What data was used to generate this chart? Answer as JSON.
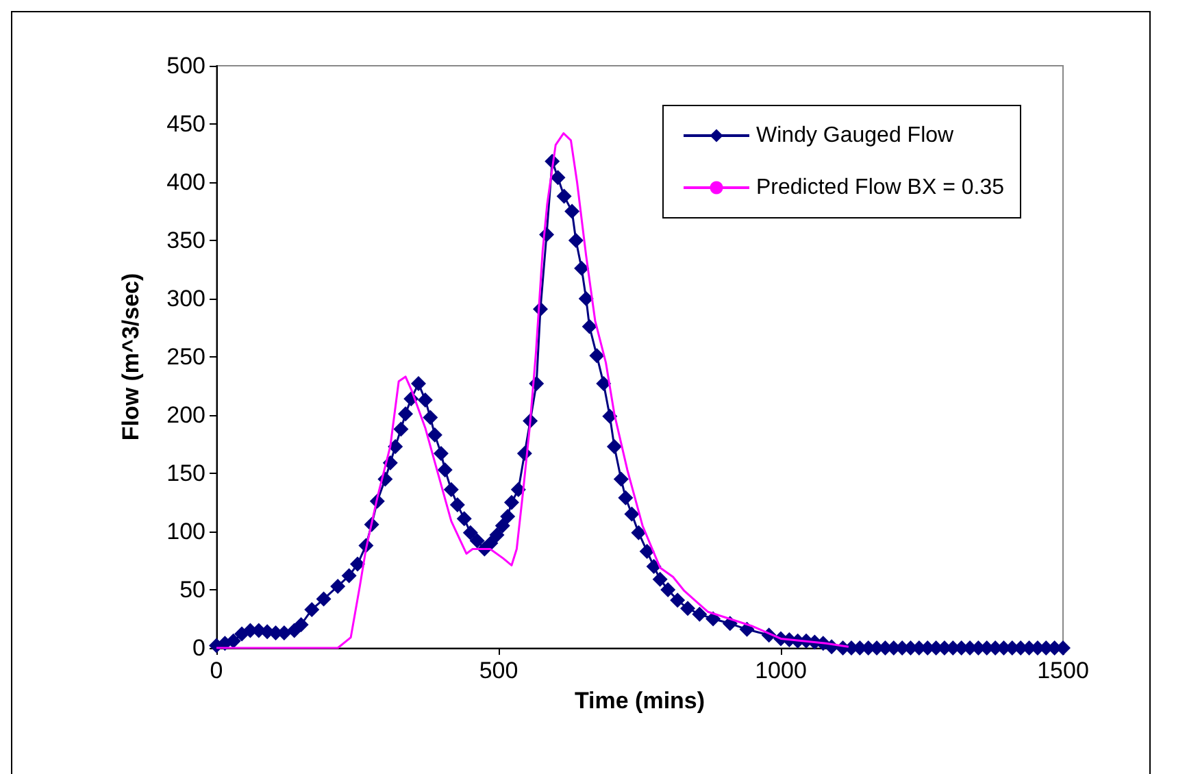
{
  "chart_data": {
    "type": "line",
    "xlabel": "Time (mins)",
    "ylabel": "Flow (m^3/sec)",
    "xlim": [
      0,
      1500
    ],
    "xticks": [
      0,
      500,
      1000,
      1500
    ],
    "ylim": [
      0,
      500
    ],
    "yticks": [
      0,
      50,
      100,
      150,
      200,
      250,
      300,
      350,
      400,
      450,
      500
    ],
    "grid": false,
    "legend": "top right",
    "series": [
      {
        "name": "Windy Gauged Flow",
        "color": "#000080",
        "marker": "diamond",
        "x": [
          0,
          15,
          30,
          45,
          60,
          75,
          90,
          105,
          120,
          138,
          150,
          169,
          190,
          215,
          235,
          250,
          265,
          275,
          285,
          299,
          308,
          317,
          327,
          335,
          345,
          358,
          370,
          379,
          387,
          398,
          405,
          416,
          427,
          439,
          450,
          462,
          475,
          486,
          497,
          507,
          516,
          523,
          535,
          546,
          556,
          567,
          574,
          585,
          595,
          605,
          616,
          630,
          637,
          647,
          655,
          661,
          674,
          686,
          697,
          705,
          717,
          725,
          736,
          748,
          763,
          775,
          786,
          800,
          817,
          835,
          856,
          880,
          910,
          940,
          979,
          1000,
          1015,
          1030,
          1045,
          1060,
          1075,
          1090,
          1110,
          1125,
          1140,
          1155,
          1170,
          1185,
          1200,
          1215,
          1230,
          1245,
          1260,
          1275,
          1290,
          1305,
          1320,
          1335,
          1350,
          1365,
          1380,
          1395,
          1410,
          1425,
          1440,
          1455,
          1470,
          1485,
          1500
        ],
        "values": [
          2,
          4,
          6,
          12,
          15,
          15,
          14,
          13,
          13,
          15,
          20,
          33,
          42,
          53,
          62,
          72,
          88,
          106,
          126,
          145,
          159,
          173,
          188,
          201,
          214,
          227,
          213,
          198,
          183,
          167,
          153,
          136,
          123,
          111,
          99,
          92,
          85,
          90,
          97,
          105,
          113,
          125,
          136,
          167,
          195,
          227,
          291,
          355,
          418,
          404,
          388,
          375,
          350,
          326,
          300,
          276,
          251,
          227,
          199,
          173,
          145,
          129,
          115,
          99,
          83,
          70,
          59,
          50,
          41,
          34,
          29,
          25,
          21,
          16,
          11,
          8,
          7,
          6,
          6,
          5,
          4,
          1,
          0,
          0,
          0,
          0,
          0,
          0,
          0,
          0,
          0,
          0,
          0,
          0,
          0,
          0,
          0,
          0,
          0,
          0,
          0,
          0,
          0,
          0,
          0,
          0,
          0,
          0,
          0
        ]
      },
      {
        "name": "Predicted Flow BX = 0.35",
        "color": "#ff00ff",
        "marker": "none",
        "x": [
          0,
          215,
          238,
          254,
          265,
          285,
          308,
          323,
          335,
          346,
          370,
          393,
          416,
          443,
          454,
          485,
          508,
          523,
          532,
          543,
          555,
          566,
          578,
          586,
          601,
          615,
          628,
          639,
          655,
          671,
          690,
          705,
          728,
          755,
          786,
          809,
          829,
          871,
          948,
          1000,
          1080,
          1120
        ],
        "values": [
          0,
          0,
          9,
          53,
          85,
          129,
          173,
          229,
          233,
          221,
          189,
          149,
          109,
          81,
          85,
          85,
          77,
          71,
          85,
          133,
          189,
          253,
          341,
          381,
          432,
          442,
          436,
          400,
          337,
          281,
          245,
          201,
          153,
          105,
          69,
          61,
          49,
          31,
          19,
          8,
          4,
          1
        ]
      }
    ]
  }
}
